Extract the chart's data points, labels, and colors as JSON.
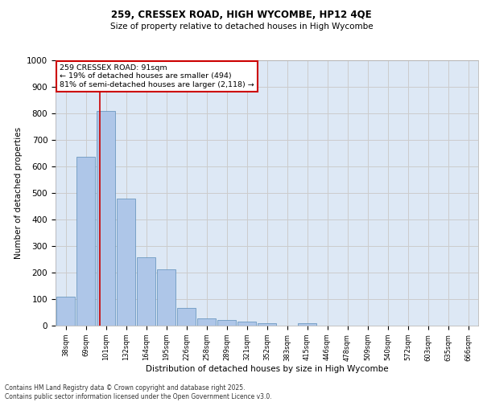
{
  "title1": "259, CRESSEX ROAD, HIGH WYCOMBE, HP12 4QE",
  "title2": "Size of property relative to detached houses in High Wycombe",
  "xlabel": "Distribution of detached houses by size in High Wycombe",
  "ylabel": "Number of detached properties",
  "categories": [
    "38sqm",
    "69sqm",
    "101sqm",
    "132sqm",
    "164sqm",
    "195sqm",
    "226sqm",
    "258sqm",
    "289sqm",
    "321sqm",
    "352sqm",
    "383sqm",
    "415sqm",
    "446sqm",
    "478sqm",
    "509sqm",
    "540sqm",
    "572sqm",
    "603sqm",
    "635sqm",
    "666sqm"
  ],
  "values": [
    110,
    635,
    810,
    480,
    258,
    212,
    66,
    28,
    22,
    14,
    10,
    0,
    9,
    0,
    0,
    0,
    0,
    0,
    0,
    0,
    0
  ],
  "bar_color": "#aec6e8",
  "bar_edge_color": "#5b8db8",
  "annotation_text_line1": "259 CRESSEX ROAD: 91sqm",
  "annotation_text_line2": "← 19% of detached houses are smaller (494)",
  "annotation_text_line3": "81% of semi-detached houses are larger (2,118) →",
  "annotation_box_facecolor": "#ffffff",
  "annotation_box_edgecolor": "#cc0000",
  "vline_color": "#cc0000",
  "grid_color": "#cccccc",
  "bg_color": "#dde8f5",
  "footer_line1": "Contains HM Land Registry data © Crown copyright and database right 2025.",
  "footer_line2": "Contains public sector information licensed under the Open Government Licence v3.0.",
  "ylim": [
    0,
    1000
  ],
  "yticks": [
    0,
    100,
    200,
    300,
    400,
    500,
    600,
    700,
    800,
    900,
    1000
  ],
  "vline_x_data": 1.69
}
